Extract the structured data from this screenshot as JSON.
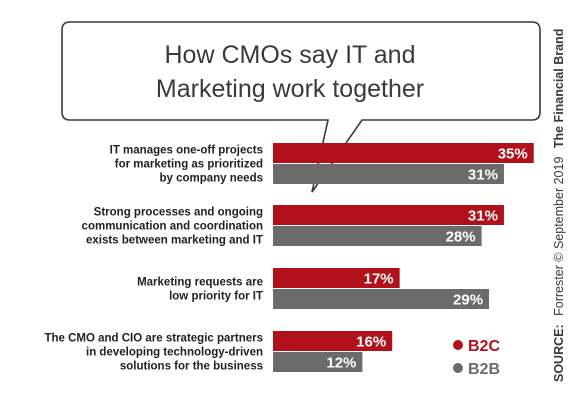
{
  "chart_data": {
    "type": "bar",
    "orientation": "horizontal",
    "title_lines": [
      "How CMOs say IT and",
      "Marketing work together"
    ],
    "categories": [
      [
        "IT manages one-off projects",
        "for marketing as prioritized",
        "by company needs"
      ],
      [
        "Strong processes and ongoing",
        "communication and coordination",
        "exists between marketing and IT"
      ],
      [
        "Marketing requests are",
        "low priority for IT"
      ],
      [
        "The CMO and CIO are strategic partners",
        "in developing technology-driven",
        "solutions for the business"
      ]
    ],
    "series": [
      {
        "name": "B2C",
        "values": [
          35,
          31,
          17,
          16
        ],
        "labels": [
          "35%",
          "31%",
          "17%",
          "16%"
        ],
        "color": "#b0111a"
      },
      {
        "name": "B2B",
        "values": [
          31,
          28,
          29,
          12
        ],
        "labels": [
          "31%",
          "28%",
          "29%",
          "12%"
        ],
        "color": "#6b6b6b"
      }
    ],
    "xlim": [
      0,
      35
    ],
    "legend_position": "bottom-right",
    "grid": false
  },
  "source": {
    "label": "SOURCE:",
    "text": "Forrester © September 2019",
    "brand": "The Financial Brand"
  }
}
